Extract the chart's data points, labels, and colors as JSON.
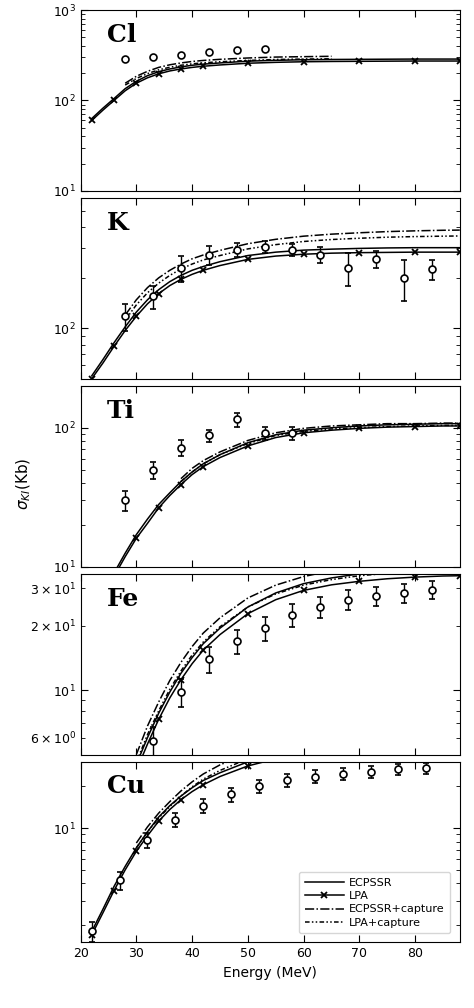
{
  "panels": [
    {
      "label": "Cl",
      "ylim": [
        10,
        1000
      ],
      "ecpssr": {
        "x": [
          22,
          24,
          26,
          28,
          30,
          32,
          34,
          36,
          38,
          40,
          42,
          45,
          50,
          55,
          60,
          65,
          70,
          75,
          80,
          85,
          88
        ],
        "y": [
          63,
          82,
          105,
          135,
          163,
          188,
          208,
          223,
          235,
          245,
          252,
          260,
          272,
          278,
          282,
          284,
          285,
          286,
          287,
          287,
          287
        ]
      },
      "lpa": {
        "x": [
          22,
          24,
          26,
          28,
          30,
          32,
          34,
          36,
          38,
          40,
          42,
          45,
          50,
          55,
          60,
          65,
          70,
          75,
          80,
          85,
          88
        ],
        "y": [
          60,
          78,
          100,
          128,
          155,
          178,
          197,
          212,
          223,
          232,
          239,
          247,
          258,
          264,
          268,
          270,
          271,
          272,
          273,
          273,
          273
        ]
      },
      "ecpssr_cap": {
        "x": [
          28,
          30,
          32,
          34,
          36,
          38,
          40,
          42,
          45,
          50,
          55,
          60,
          65
        ],
        "y": [
          155,
          185,
          210,
          232,
          248,
          260,
          270,
          277,
          285,
          295,
          302,
          305,
          308
        ]
      },
      "lpa_cap": {
        "x": [
          28,
          30,
          32,
          34,
          36,
          38,
          40,
          42,
          45,
          50,
          55,
          60,
          65
        ],
        "y": [
          148,
          175,
          198,
          218,
          233,
          245,
          254,
          261,
          268,
          277,
          284,
          287,
          289
        ]
      },
      "exp": {
        "x": [
          28,
          33,
          38,
          43,
          48,
          53
        ],
        "y": [
          290,
          300,
          320,
          340,
          360,
          375
        ],
        "yerr": [
          0,
          0,
          0,
          0,
          0,
          0
        ]
      }
    },
    {
      "label": "K",
      "ylim": [
        50,
        600
      ],
      "ecpssr": {
        "x": [
          22,
          24,
          26,
          28,
          30,
          32,
          34,
          36,
          38,
          40,
          42,
          45,
          50,
          55,
          60,
          65,
          70,
          75,
          80,
          85,
          88
        ],
        "y": [
          52,
          65,
          82,
          102,
          125,
          148,
          170,
          190,
          207,
          222,
          234,
          250,
          272,
          285,
          293,
          297,
          300,
          302,
          303,
          303,
          303
        ]
      },
      "lpa": {
        "x": [
          22,
          24,
          26,
          28,
          30,
          32,
          34,
          36,
          38,
          40,
          42,
          45,
          50,
          55,
          60,
          65,
          70,
          75,
          80,
          85,
          88
        ],
        "y": [
          50,
          62,
          78,
          97,
          118,
          140,
          161,
          180,
          196,
          210,
          222,
          237,
          258,
          270,
          277,
          281,
          283,
          284,
          285,
          285,
          285
        ]
      },
      "ecpssr_cap": {
        "x": [
          28,
          30,
          32,
          34,
          36,
          38,
          40,
          42,
          45,
          50,
          55,
          60,
          65,
          70,
          75,
          80,
          85,
          88
        ],
        "y": [
          120,
          148,
          175,
          200,
          222,
          242,
          260,
          274,
          292,
          320,
          340,
          355,
          365,
          372,
          378,
          382,
          385,
          386
        ]
      },
      "lpa_cap": {
        "x": [
          28,
          30,
          32,
          34,
          36,
          38,
          40,
          42,
          45,
          50,
          55,
          60,
          65,
          70,
          75,
          80,
          85,
          88
        ],
        "y": [
          112,
          138,
          163,
          186,
          207,
          226,
          242,
          256,
          272,
          298,
          316,
          330,
          339,
          345,
          350,
          353,
          355,
          356
        ]
      },
      "exp": {
        "x": [
          28,
          33,
          38,
          43,
          48,
          53,
          58,
          63,
          68,
          73,
          78,
          83
        ],
        "y": [
          118,
          155,
          230,
          275,
          295,
          305,
          295,
          275,
          230,
          260,
          200,
          225
        ],
        "yerr": [
          22,
          25,
          40,
          35,
          30,
          25,
          25,
          30,
          50,
          30,
          55,
          30
        ]
      }
    },
    {
      "label": "Ti",
      "ylim": [
        10,
        200
      ],
      "ecpssr": {
        "x": [
          22,
          24,
          26,
          28,
          30,
          32,
          34,
          36,
          38,
          40,
          42,
          45,
          50,
          55,
          60,
          65,
          70,
          75,
          80,
          85,
          88
        ],
        "y": [
          4.5,
          6.5,
          9,
          12.5,
          17,
          22,
          28,
          34,
          41,
          48,
          55,
          64,
          78,
          89,
          96,
          100,
          103,
          105,
          106,
          107,
          107
        ]
      },
      "lpa": {
        "x": [
          22,
          24,
          26,
          28,
          30,
          32,
          34,
          36,
          38,
          40,
          42,
          45,
          50,
          55,
          60,
          65,
          70,
          75,
          80,
          85,
          88
        ],
        "y": [
          4.2,
          6.1,
          8.5,
          11.8,
          16,
          20.5,
          26.5,
          32.5,
          39,
          46,
          52.5,
          61,
          74,
          85,
          92,
          96,
          99,
          101,
          102,
          103,
          103
        ]
      },
      "ecpssr_cap": {
        "x": [
          38,
          40,
          42,
          45,
          50,
          55,
          60,
          65,
          70,
          75,
          80,
          85,
          88
        ],
        "y": [
          43,
          51,
          58,
          67,
          81,
          92,
          99,
          103,
          105,
          107,
          107,
          108,
          108
        ]
      },
      "lpa_cap": {
        "x": [
          38,
          40,
          42,
          45,
          50,
          55,
          60,
          65,
          70,
          75,
          80,
          85,
          88
        ],
        "y": [
          41,
          48,
          55,
          64,
          77,
          88,
          94,
          98,
          100,
          102,
          103,
          104,
          104
        ]
      },
      "exp": {
        "x": [
          28,
          33,
          38,
          43,
          48,
          53,
          58
        ],
        "y": [
          30,
          50,
          72,
          88,
          115,
          92,
          92
        ],
        "yerr": [
          5,
          7,
          9,
          9,
          13,
          10,
          10
        ]
      }
    },
    {
      "label": "Fe",
      "ylim": [
        5,
        35
      ],
      "ecpssr": {
        "x": [
          22,
          24,
          26,
          28,
          30,
          32,
          34,
          36,
          38,
          40,
          42,
          45,
          50,
          55,
          60,
          65,
          70,
          75,
          80,
          85,
          88
        ],
        "y": [
          1.0,
          1.5,
          2.2,
          3.2,
          4.5,
          6.0,
          7.8,
          9.8,
          12,
          14.2,
          16.5,
          19.5,
          24.5,
          28.5,
          31.5,
          33.5,
          35,
          36,
          37,
          37.5,
          37.5
        ]
      },
      "lpa": {
        "x": [
          22,
          24,
          26,
          28,
          30,
          32,
          34,
          36,
          38,
          40,
          42,
          45,
          50,
          55,
          60,
          65,
          70,
          75,
          80,
          85,
          88
        ],
        "y": [
          0.95,
          1.42,
          2.1,
          3.0,
          4.2,
          5.6,
          7.3,
          9.2,
          11.2,
          13.3,
          15.4,
          18.2,
          22.8,
          26.5,
          29.3,
          31.1,
          32.3,
          33.2,
          33.8,
          34.2,
          34.3
        ]
      },
      "ecpssr_cap": {
        "x": [
          30,
          32,
          34,
          36,
          38,
          40,
          42,
          45,
          50,
          55,
          60,
          65,
          70,
          75,
          80,
          85,
          88
        ],
        "y": [
          5.0,
          6.8,
          8.8,
          11.1,
          13.5,
          16.0,
          18.5,
          21.8,
          27.0,
          31.0,
          34.0,
          36.2,
          37.8,
          38.8,
          39.5,
          40.0,
          40.2
        ]
      },
      "lpa_cap": {
        "x": [
          30,
          32,
          34,
          36,
          38,
          40,
          42,
          45,
          50,
          55,
          60,
          65,
          70,
          75,
          80,
          85,
          88
        ],
        "y": [
          4.6,
          6.2,
          8.0,
          10.1,
          12.3,
          14.6,
          16.8,
          19.8,
          24.5,
          28.2,
          31.0,
          32.9,
          34.3,
          35.2,
          35.8,
          36.2,
          36.4
        ]
      },
      "exp": {
        "x": [
          28,
          33,
          38,
          43,
          48,
          53,
          58,
          63,
          68,
          73,
          78,
          83
        ],
        "y": [
          2.8,
          5.8,
          9.8,
          14.0,
          17.0,
          19.5,
          22.5,
          24.5,
          26.5,
          27.5,
          28.5,
          29.5
        ],
        "yerr": [
          0.5,
          0.9,
          1.5,
          2.0,
          2.2,
          2.5,
          2.8,
          2.8,
          2.8,
          2.8,
          2.8,
          2.8
        ]
      }
    },
    {
      "label": "Cu",
      "ylim": [
        1.5,
        30
      ],
      "ecpssr": {
        "x": [
          22,
          24,
          26,
          28,
          30,
          32,
          34,
          36,
          38,
          40,
          42,
          45,
          50,
          55,
          60,
          65,
          70,
          75,
          80,
          85,
          88
        ],
        "y": [
          1.8,
          2.6,
          3.8,
          5.3,
          7.2,
          9.4,
          12,
          14.5,
          17,
          19.5,
          22,
          25,
          30,
          34,
          37,
          39.5,
          41.2,
          42.5,
          43.5,
          44,
          44.2
        ]
      },
      "lpa": {
        "x": [
          22,
          24,
          26,
          28,
          30,
          32,
          34,
          36,
          38,
          40,
          42,
          45,
          50,
          55,
          60,
          65,
          70,
          75,
          80,
          85,
          88
        ],
        "y": [
          1.7,
          2.45,
          3.55,
          5.0,
          6.8,
          8.8,
          11.2,
          13.6,
          16,
          18.3,
          20.5,
          23.5,
          28,
          31.5,
          34.5,
          36.5,
          38,
          39.2,
          40,
          40.5,
          40.8
        ]
      },
      "ecpssr_cap": {
        "x": [
          30,
          32,
          34,
          36,
          38,
          40,
          42,
          45,
          50,
          55,
          60,
          65,
          70,
          75,
          80,
          85,
          88
        ],
        "y": [
          7.8,
          10.2,
          12.8,
          15.5,
          18.5,
          21.5,
          24.5,
          28.5,
          34.5,
          39.5,
          43,
          46,
          48,
          49.5,
          50.5,
          51.2,
          51.5
        ]
      },
      "lpa_cap": {
        "x": [
          30,
          32,
          34,
          36,
          38,
          40,
          42,
          45,
          50,
          55,
          60,
          65,
          70,
          75,
          80,
          85,
          88
        ],
        "y": [
          7.2,
          9.4,
          11.8,
          14.3,
          17,
          19.8,
          22.5,
          26,
          31.5,
          36,
          39,
          41.5,
          43.5,
          44.8,
          45.8,
          46.5,
          46.8
        ]
      },
      "exp": {
        "x": [
          22,
          27,
          32,
          37,
          42,
          47,
          52,
          57,
          62,
          67,
          72,
          77,
          82
        ],
        "y": [
          1.8,
          4.2,
          8.2,
          11.5,
          14.5,
          17.5,
          20,
          22,
          23.5,
          24.5,
          25.5,
          26.5,
          27
        ],
        "yerr": [
          0.3,
          0.6,
          1.0,
          1.4,
          1.7,
          2.0,
          2.2,
          2.4,
          2.5,
          2.5,
          2.5,
          2.5,
          2.5
        ]
      }
    }
  ],
  "xlabel": "Energy (MeV)",
  "ylabel": "σ_KI(Kb)",
  "xlim": [
    20,
    88
  ],
  "xticks": [
    20,
    30,
    40,
    50,
    60,
    70,
    80
  ],
  "legend_labels": [
    "ECPSSR",
    "LPA",
    "ECPSSR+capture",
    "LPA+capture"
  ]
}
